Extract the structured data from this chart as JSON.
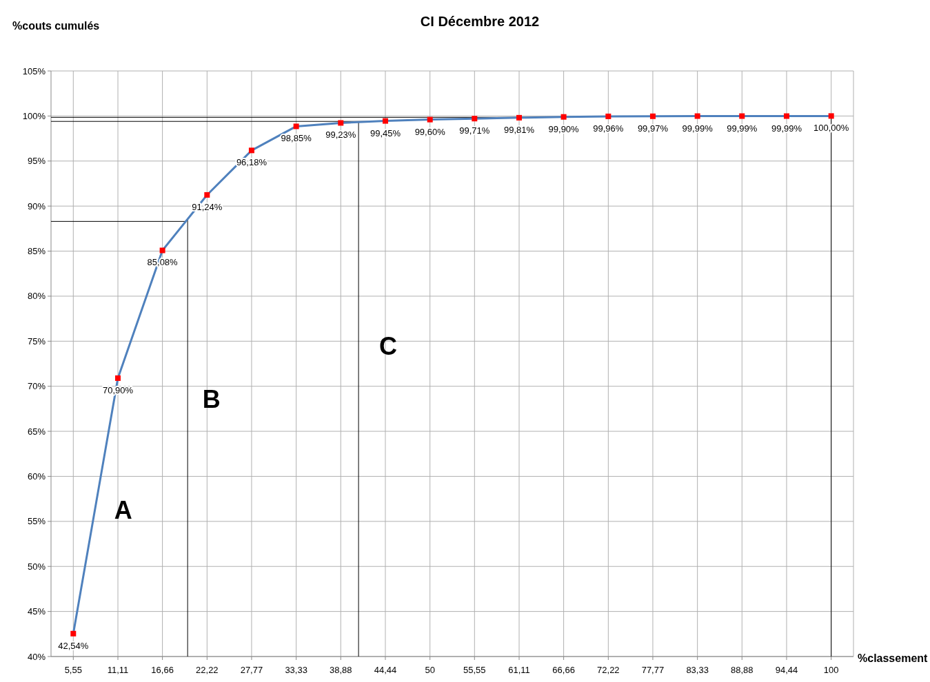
{
  "chart_data": {
    "type": "line",
    "title": "CI Décembre 2012",
    "ylabel": "%couts cumulés",
    "xlabel": "%classement",
    "x": [
      5.55,
      11.11,
      16.66,
      22.22,
      27.77,
      33.33,
      38.88,
      44.44,
      50,
      55.55,
      61.11,
      66.66,
      72.22,
      77.77,
      83.33,
      88.88,
      94.44,
      100
    ],
    "xlim": [
      2.775,
      102.775
    ],
    "xticks": [
      {
        "value": 5.55,
        "label": "5,55"
      },
      {
        "value": 11.11,
        "label": "11,11"
      },
      {
        "value": 16.66,
        "label": "16,66"
      },
      {
        "value": 22.22,
        "label": "22,22"
      },
      {
        "value": 27.77,
        "label": "27,77"
      },
      {
        "value": 33.33,
        "label": "33,33"
      },
      {
        "value": 38.88,
        "label": "38,88"
      },
      {
        "value": 44.44,
        "label": "44,44"
      },
      {
        "value": 50,
        "label": "50"
      },
      {
        "value": 55.55,
        "label": "55,55"
      },
      {
        "value": 61.11,
        "label": "61,11"
      },
      {
        "value": 66.66,
        "label": "66,66"
      },
      {
        "value": 72.22,
        "label": "72,22"
      },
      {
        "value": 77.77,
        "label": "77,77"
      },
      {
        "value": 83.33,
        "label": "83,33"
      },
      {
        "value": 88.88,
        "label": "88,88"
      },
      {
        "value": 94.44,
        "label": "94,44"
      },
      {
        "value": 100,
        "label": "100"
      }
    ],
    "ylim": [
      40,
      105
    ],
    "yticks": [
      {
        "value": 40,
        "label": "40%"
      },
      {
        "value": 45,
        "label": "45%"
      },
      {
        "value": 50,
        "label": "50%"
      },
      {
        "value": 55,
        "label": "55%"
      },
      {
        "value": 60,
        "label": "60%"
      },
      {
        "value": 65,
        "label": "65%"
      },
      {
        "value": 70,
        "label": "70%"
      },
      {
        "value": 75,
        "label": "75%"
      },
      {
        "value": 80,
        "label": "80%"
      },
      {
        "value": 85,
        "label": "85%"
      },
      {
        "value": 90,
        "label": "90%"
      },
      {
        "value": 95,
        "label": "95%"
      },
      {
        "value": 100,
        "label": "100%"
      },
      {
        "value": 105,
        "label": "105%"
      }
    ],
    "series": [
      {
        "color": "#4f81bd",
        "values": [
          42.54,
          70.9,
          85.08,
          91.24,
          96.18,
          98.85,
          99.23,
          99.45,
          99.6,
          99.71,
          99.81,
          99.9,
          99.96,
          99.97,
          99.99,
          99.99,
          99.99,
          100.0
        ],
        "value_labels": [
          "42,54%",
          "70,90%",
          "85,08%",
          "91,24%",
          "96,18%",
          "98,85%",
          "99,23%",
          "99,45%",
          "99,60%",
          "99,71%",
          "99,81%",
          "99,90%",
          "99,96%",
          "99,97%",
          "99,99%",
          "99,99%",
          "99,99%",
          "100,00%"
        ]
      }
    ],
    "marker": "square",
    "grid": true,
    "ref_lines": [
      {
        "axis": "y",
        "value": 88.3,
        "color": "#000000"
      },
      {
        "axis": "y",
        "value": 99.4,
        "color": "#000000"
      },
      {
        "axis": "y",
        "value": 99.85,
        "color": "#000000"
      },
      {
        "axis": "x",
        "value": 19.8,
        "color": "#000000"
      },
      {
        "axis": "x",
        "value": 41.1,
        "color": "#000000"
      },
      {
        "axis": "x",
        "value": 100,
        "color": "#000000"
      }
    ],
    "annotations": [
      "A",
      "B",
      "C"
    ]
  }
}
